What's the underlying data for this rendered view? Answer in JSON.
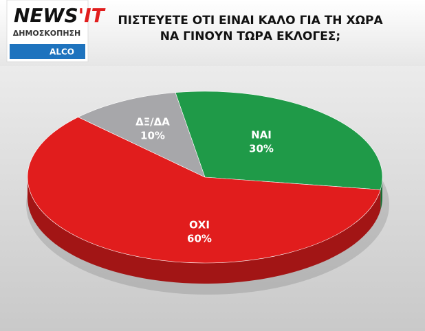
{
  "logo": {
    "name": "NEWS",
    "suffix": "'IT",
    "subtitle": "ΔΗΜΟΣΚΟΠΗΣΗ",
    "pollster": "ALCO"
  },
  "chart_data": {
    "type": "pie",
    "title": [
      "ΠΙΣΤΕΥΕΤΕ ΟΤΙ ΕΙΝΑΙ ΚΑΛΟ ΓΙΑ ΤΗ ΧΩΡΑ",
      "ΝΑ ΓΙΝΟΥΝ ΤΩΡΑ ΕΚΛΟΓΕΣ;"
    ],
    "categories": [
      "ΝΑΙ",
      "ΟΧΙ",
      "ΔΞ/ΔΑ"
    ],
    "values": [
      30,
      60,
      10
    ],
    "value_labels": [
      "30%",
      "60%",
      "10%"
    ],
    "colors": [
      "#1f9a48",
      "#e11d1d",
      "#a7a7aa"
    ]
  }
}
